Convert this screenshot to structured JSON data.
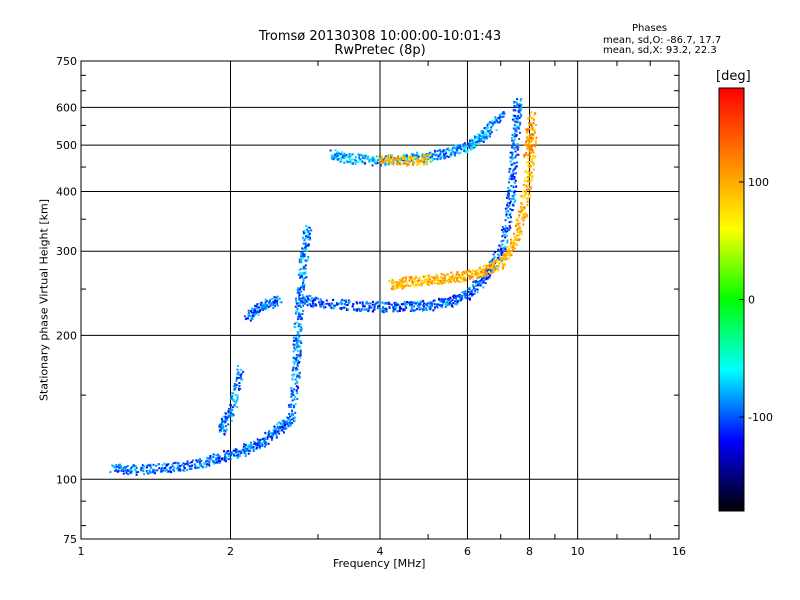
{
  "chart_data": {
    "type": "scatter",
    "title": "Tromsø 20130308 10:00:00-10:01:43",
    "subtitle": "RwPretec (8p)",
    "xlabel": "Frequency [MHz]",
    "ylabel": "Stationary phase Virtual Height [km]",
    "x_scale": "log",
    "y_scale": "log",
    "xlim": [
      1,
      16
    ],
    "ylim": [
      75,
      750
    ],
    "x_ticks": [
      1,
      2,
      4,
      6,
      8,
      10,
      16
    ],
    "x_tick_labels": [
      "1",
      "2",
      "4",
      "6",
      "8",
      "10",
      "16"
    ],
    "y_ticks": [
      75,
      100,
      200,
      300,
      400,
      500,
      600,
      750
    ],
    "y_tick_labels": [
      "75",
      "100",
      "200",
      "300",
      "400",
      "500",
      "600",
      "750"
    ],
    "grid": true,
    "legend": {
      "title": "Phases",
      "lines": [
        "mean, sd,O: -86.7, 17.7",
        "mean, sd,X:  93.2, 22.3"
      ],
      "placement": "top-right"
    },
    "colorbar": {
      "label": "[deg]",
      "range": [
        -180,
        180
      ],
      "ticks": [
        100,
        0,
        -100
      ],
      "tick_labels": [
        "100",
        "0",
        "-100"
      ],
      "colors": [
        "#ff0000",
        "#ff8000",
        "#ffff00",
        "#00ff00",
        "#00ffff",
        "#0000ff",
        "#000000"
      ]
    },
    "series": [
      {
        "traces": [
          {
            "x": [
              1.15,
              1.3,
              1.5,
              1.7,
              1.9,
              2.1,
              2.3,
              2.5,
              2.65
            ],
            "y": [
              106,
              105,
              106,
              108,
              111,
              115,
              120,
              128,
              135
            ],
            "phase": -95
          },
          {
            "x": [
              2.65,
              2.7,
              2.72,
              2.75,
              2.8,
              2.85
            ],
            "y": [
              135,
              170,
              200,
              240,
              290,
              340
            ],
            "phase": -90
          },
          {
            "x": [
              2.75,
              3.0,
              3.5,
              4.0,
              4.5,
              5.0,
              5.5,
              6.0,
              6.5,
              7.0,
              7.3
            ],
            "y": [
              240,
              235,
              232,
              230,
              231,
              232,
              236,
              245,
              265,
              300,
              380
            ],
            "phase": -100
          },
          {
            "x": [
              7.3,
              7.4,
              7.5,
              7.55
            ],
            "y": [
              380,
              450,
              550,
              620
            ],
            "phase": -95
          },
          {
            "x": [
              3.2,
              3.5,
              4.0,
              4.5,
              5.0,
              5.5,
              6.0,
              6.5,
              7.0
            ],
            "y": [
              480,
              470,
              465,
              470,
              475,
              485,
              500,
              530,
              580
            ],
            "phase": -85
          },
          {
            "x": [
              2.15,
              2.3,
              2.5
            ],
            "y": [
              220,
              230,
              240
            ],
            "phase": -95
          },
          {
            "x": [
              1.9,
              2.0,
              2.1
            ],
            "y": [
              125,
              140,
              170
            ],
            "phase": -90
          }
        ]
      },
      {
        "traces": [
          {
            "x": [
              4.2,
              4.5,
              5.0,
              5.5,
              6.0,
              6.5,
              7.0,
              7.5,
              7.8,
              8.0,
              8.1
            ],
            "y": [
              255,
              260,
              262,
              265,
              268,
              275,
              285,
              320,
              380,
              450,
              550
            ],
            "phase": 95
          },
          {
            "x": [
              4.0,
              4.5,
              5.0
            ],
            "y": [
              470,
              465,
              470
            ],
            "phase": 90
          },
          {
            "x": [
              7.9,
              8.05
            ],
            "y": [
              480,
              580
            ],
            "phase": 110
          }
        ]
      }
    ]
  }
}
